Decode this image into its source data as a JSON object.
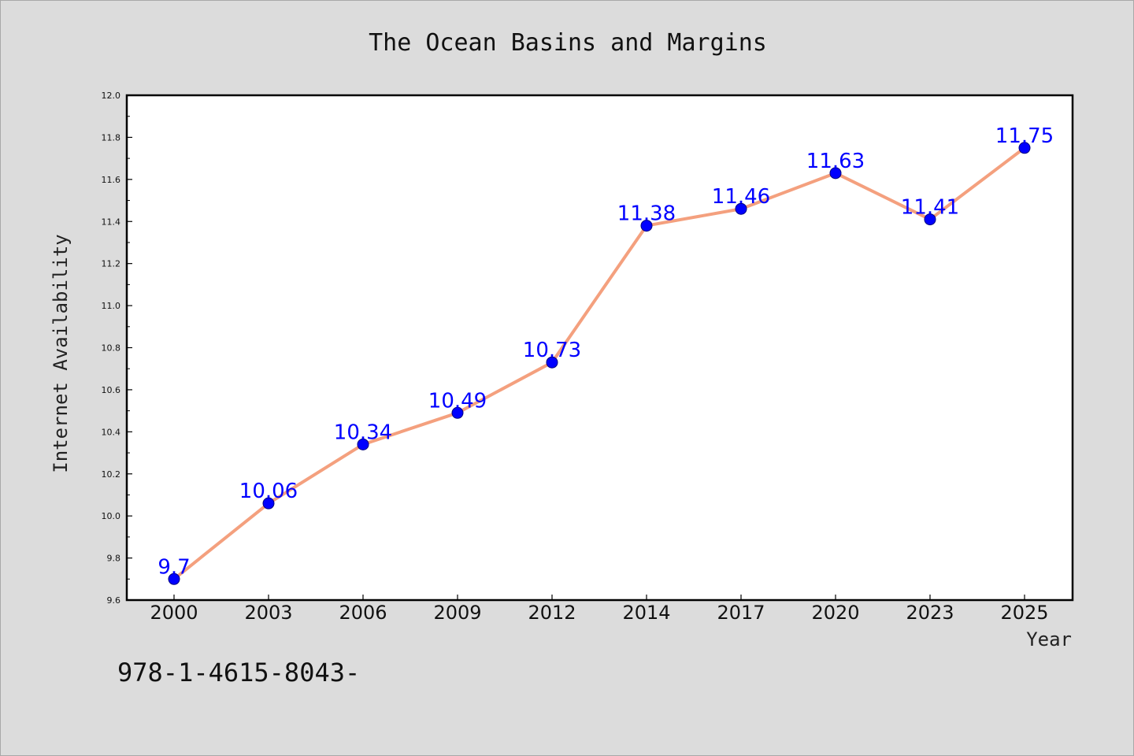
{
  "chart_data": {
    "type": "line",
    "title": "The Ocean Basins and Margins",
    "xlabel": "Year",
    "ylabel": "Internet Availability",
    "categories": [
      "2000",
      "2003",
      "2006",
      "2009",
      "2012",
      "2014",
      "2017",
      "2020",
      "2023",
      "2025"
    ],
    "series": [
      {
        "values": [
          9.7,
          10.06,
          10.34,
          10.49,
          10.73,
          11.38,
          11.46,
          11.63,
          11.41,
          11.75
        ],
        "labels": [
          "9.7",
          "10.06",
          "10.34",
          "10.49",
          "10.73",
          "11.38",
          "11.46",
          "11.63",
          "11.41",
          "11.75"
        ]
      }
    ],
    "ylim": [
      9.6,
      12.0
    ],
    "yticks": [
      "9.6",
      "9.8",
      "10.0",
      "10.2",
      "10.4",
      "10.6",
      "10.8",
      "11.0",
      "11.2",
      "11.4",
      "11.6",
      "11.8",
      "12.0"
    ],
    "grid": false,
    "legend": "none",
    "colors": {
      "line": "#f4a07e",
      "marker": "#0000ff",
      "marker_edge": "#000080",
      "data_label": "#0000ff",
      "background": "#dcdcdc",
      "plot_area": "#ffffff"
    }
  },
  "footer": {
    "code": "978-1-4615-8043-"
  }
}
